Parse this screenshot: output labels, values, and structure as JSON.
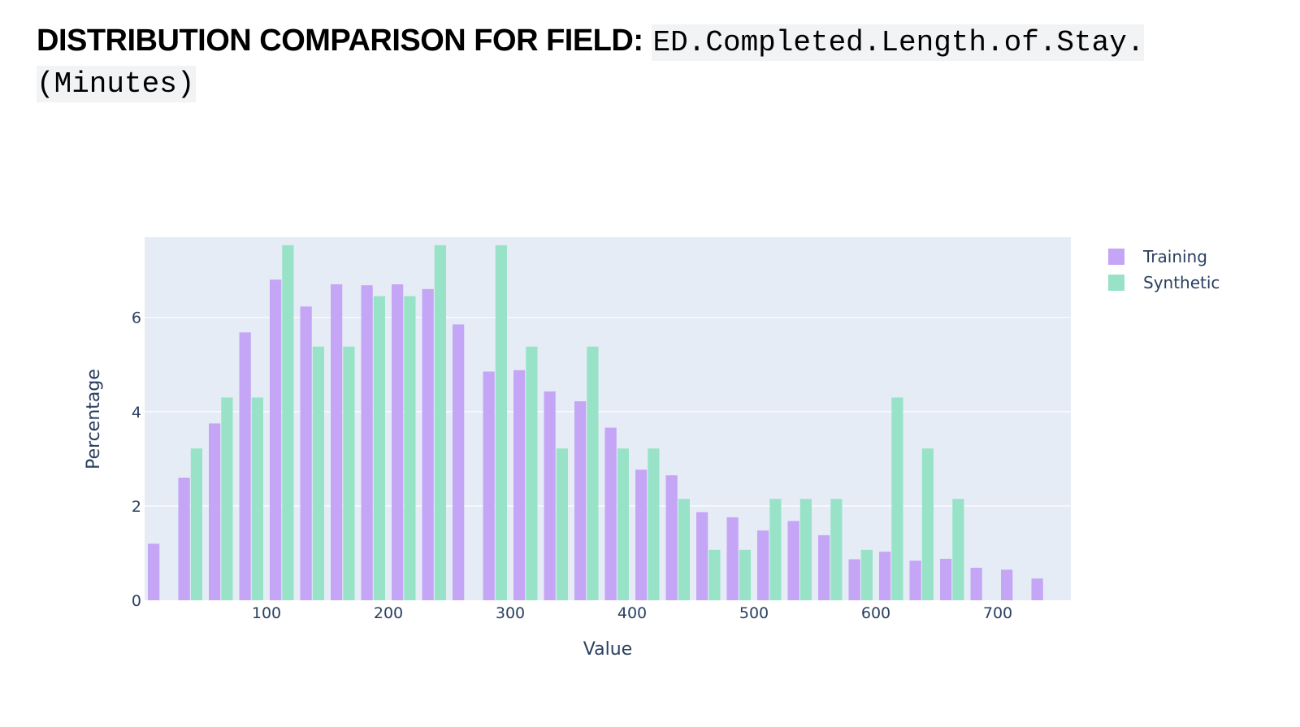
{
  "header": {
    "title_prefix": "DISTRIBUTION COMPARISON FOR FIELD: ",
    "field_name": "ED.Completed.Length.of.Stay.(Minutes)"
  },
  "chart_data": {
    "type": "bar",
    "xlabel": "Value",
    "ylabel": "Percentage",
    "xlim": [
      0,
      760
    ],
    "ylim": [
      0,
      7.7
    ],
    "x_ticks": [
      100,
      200,
      300,
      400,
      500,
      600,
      700
    ],
    "y_ticks": [
      0,
      2,
      4,
      6
    ],
    "grid": true,
    "legend_position": "top-right",
    "bin_width": 25,
    "x": [
      12.5,
      37.5,
      62.5,
      87.5,
      112.5,
      137.5,
      162.5,
      187.5,
      212.5,
      237.5,
      262.5,
      287.5,
      312.5,
      337.5,
      362.5,
      387.5,
      412.5,
      437.5,
      462.5,
      487.5,
      512.5,
      537.5,
      562.5,
      587.5,
      612.5,
      637.5,
      662.5,
      687.5,
      712.5,
      737.5
    ],
    "series": [
      {
        "name": "Training",
        "color": "#c5a5f5",
        "values": [
          1.2,
          2.6,
          3.75,
          5.68,
          6.8,
          6.23,
          6.7,
          6.68,
          6.7,
          6.6,
          5.85,
          4.85,
          4.88,
          4.43,
          4.22,
          3.66,
          2.77,
          2.65,
          1.87,
          1.76,
          1.48,
          1.68,
          1.38,
          0.87,
          1.03,
          0.84,
          0.88,
          0.69,
          0.65,
          0.46
        ]
      },
      {
        "name": "Synthetic",
        "color": "#98e3c8",
        "values": [
          0,
          3.22,
          4.3,
          4.3,
          7.53,
          5.38,
          5.38,
          6.45,
          6.45,
          7.53,
          0,
          7.53,
          5.38,
          3.22,
          5.38,
          3.22,
          3.22,
          2.15,
          1.07,
          1.07,
          2.15,
          2.15,
          2.15,
          1.07,
          4.3,
          3.22,
          2.15,
          0,
          0,
          0
        ]
      }
    ]
  },
  "colors": {
    "plot_background": "#e5ecf6",
    "gridline": "#ffffff",
    "axis_text": "#2a3f5f"
  }
}
